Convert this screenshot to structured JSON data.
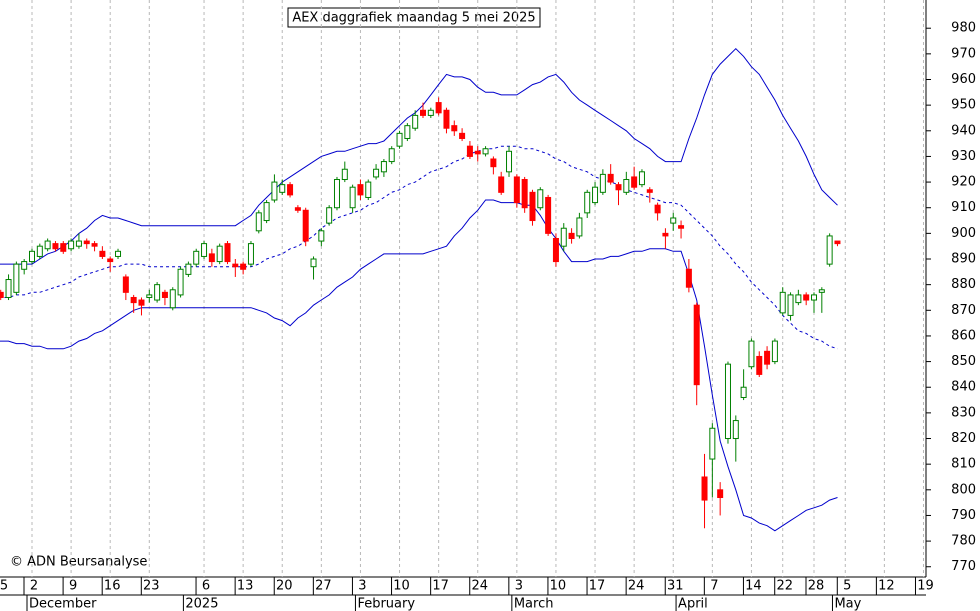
{
  "chart_data": {
    "type": "candlestick",
    "title": "AEX daggrafiek maandag 5 mei 2025",
    "footer": "© ADN Beursanalyse",
    "categories": [
      "5",
      null,
      null,
      null,
      null,
      "2",
      null,
      null,
      null,
      null,
      "9",
      null,
      null,
      null,
      null,
      "16",
      null,
      null,
      null,
      null,
      "23",
      null,
      null,
      null,
      null,
      null,
      null,
      "6",
      null,
      null,
      null,
      null,
      "13",
      null,
      null,
      null,
      null,
      "20",
      null,
      null,
      null,
      null,
      "27",
      null,
      null,
      null,
      null,
      "3",
      null,
      null,
      null,
      null,
      "10",
      null,
      null,
      null,
      null,
      "17",
      null,
      null,
      null,
      null,
      "24",
      null,
      null,
      null,
      null,
      "3",
      null,
      null,
      null,
      null,
      "10",
      null,
      null,
      null,
      null,
      "17",
      null,
      null,
      null,
      null,
      "24",
      null,
      null,
      null,
      null,
      "31",
      null,
      null,
      null,
      null,
      "7",
      null,
      null,
      null,
      null,
      "14",
      null,
      null,
      null,
      "22",
      null,
      null,
      null,
      "28",
      null,
      null,
      null,
      "5",
      null,
      null,
      null,
      null,
      "12",
      null,
      null,
      null,
      null,
      "19"
    ],
    "month_categories": [
      null,
      null,
      null,
      null,
      null,
      "December",
      null,
      null,
      null,
      null,
      null,
      null,
      null,
      null,
      null,
      null,
      null,
      null,
      null,
      null,
      null,
      null,
      null,
      null,
      null,
      "2025",
      null,
      null,
      null,
      null,
      null,
      null,
      null,
      null,
      null,
      null,
      null,
      null,
      null,
      null,
      null,
      null,
      null,
      null,
      null,
      null,
      null,
      "February",
      null,
      null,
      null,
      null,
      null,
      null,
      null,
      null,
      null,
      null,
      null,
      null,
      null,
      null,
      null,
      null,
      null,
      null,
      null,
      "March",
      null,
      null,
      null,
      null,
      null,
      null,
      null,
      null,
      null,
      null,
      null,
      null,
      null,
      null,
      null,
      null,
      null,
      null,
      null,
      null,
      "April",
      null,
      null,
      null,
      null,
      null,
      null,
      null,
      null,
      null,
      null,
      null,
      null,
      null,
      null,
      null,
      null,
      null,
      null,
      null,
      "May",
      null,
      null,
      null,
      null,
      null,
      null,
      null,
      null,
      null,
      null,
      null
    ],
    "open": [
      null,
      877,
      875,
      877,
      886,
      889,
      891,
      894,
      896,
      896,
      894,
      895,
      897,
      896,
      893,
      890,
      891,
      883,
      875,
      874,
      875,
      874,
      877,
      871,
      876,
      884,
      888,
      891,
      892,
      889,
      896,
      888,
      888,
      888,
      901,
      905,
      913,
      916,
      919,
      910,
      909,
      887,
      897,
      904,
      910,
      921,
      910,
      919,
      914,
      922,
      924,
      928,
      934,
      937,
      941,
      948,
      946,
      951,
      948,
      942,
      939,
      934,
      932,
      931,
      929,
      922,
      924,
      922,
      921,
      916,
      910,
      914,
      898,
      895,
      900,
      899,
      908,
      912,
      916,
      923,
      919,
      916,
      922,
      919,
      917,
      911,
      900,
      904,
      903,
      886,
      872,
      805,
      812,
      800,
      820,
      820,
      836,
      848,
      852,
      854,
      850,
      869,
      868,
      873,
      876,
      874,
      877,
      888,
      897,
      null,
      null,
      null,
      null,
      null,
      null,
      null,
      null,
      null,
      null,
      null
    ],
    "high": [
      null,
      878,
      884,
      889,
      890,
      894,
      896,
      898,
      897,
      897,
      898,
      900,
      898,
      897,
      895,
      891,
      894,
      884,
      876,
      875,
      878,
      881,
      878,
      879,
      887,
      889,
      894,
      897,
      894,
      896,
      897,
      890,
      889,
      897,
      909,
      913,
      923,
      921,
      920,
      911,
      910,
      891,
      902,
      911,
      922,
      928,
      919,
      921,
      921,
      927,
      929,
      934,
      940,
      943,
      948,
      951,
      949,
      953,
      949,
      944,
      941,
      936,
      934,
      934,
      930,
      924,
      934,
      923,
      922,
      917,
      918,
      915,
      900,
      904,
      902,
      908,
      917,
      920,
      925,
      927,
      920,
      924,
      926,
      925,
      918,
      912,
      902,
      908,
      905,
      890,
      873,
      814,
      826,
      803,
      850,
      829,
      847,
      859,
      854,
      856,
      859,
      879,
      877,
      878,
      877,
      877,
      879,
      900,
      897,
      null,
      null,
      null,
      null,
      null,
      null,
      null,
      null,
      null,
      null,
      null
    ],
    "low": [
      null,
      874,
      874,
      876,
      884,
      888,
      890,
      893,
      893,
      892,
      893,
      894,
      894,
      893,
      890,
      885,
      890,
      874,
      869,
      868,
      873,
      873,
      872,
      870,
      875,
      883,
      887,
      890,
      887,
      888,
      888,
      883,
      884,
      887,
      900,
      904,
      912,
      915,
      914,
      908,
      895,
      882,
      895,
      903,
      909,
      920,
      908,
      913,
      913,
      921,
      922,
      927,
      933,
      936,
      940,
      945,
      945,
      946,
      939,
      938,
      936,
      929,
      928,
      930,
      923,
      915,
      922,
      910,
      908,
      903,
      909,
      899,
      887,
      893,
      896,
      898,
      906,
      911,
      915,
      919,
      911,
      915,
      917,
      918,
      912,
      905,
      894,
      901,
      898,
      877,
      833,
      785,
      797,
      790,
      818,
      811,
      835,
      847,
      844,
      847,
      849,
      868,
      866,
      872,
      872,
      869,
      869,
      887,
      895,
      null,
      null,
      null,
      null,
      null,
      null,
      null,
      null,
      null,
      null,
      null
    ],
    "close": [
      null,
      875,
      882,
      888,
      889,
      893,
      895,
      897,
      894,
      893,
      897,
      897,
      896,
      895,
      891,
      889,
      893,
      877,
      873,
      872,
      876,
      880,
      875,
      878,
      886,
      888,
      893,
      896,
      889,
      895,
      889,
      887,
      886,
      896,
      908,
      912,
      920,
      919,
      915,
      909,
      897,
      890,
      901,
      910,
      921,
      925,
      918,
      915,
      920,
      925,
      928,
      933,
      939,
      942,
      946,
      946,
      948,
      947,
      941,
      940,
      937,
      930,
      931,
      933,
      926,
      916,
      932,
      912,
      910,
      905,
      917,
      900,
      889,
      902,
      898,
      906,
      916,
      918,
      923,
      920,
      917,
      921,
      918,
      924,
      916,
      908,
      899,
      906,
      902,
      879,
      841,
      796,
      824,
      797,
      849,
      827,
      840,
      858,
      845,
      849,
      858,
      877,
      876,
      876,
      874,
      876,
      878,
      899,
      896,
      null,
      null,
      null,
      null,
      null,
      null,
      null,
      null,
      null,
      null,
      null
    ],
    "bands": {
      "upper": [
        888,
        888,
        888,
        888,
        888,
        888,
        890,
        892,
        893,
        895,
        897,
        900,
        902,
        905,
        907,
        906,
        906,
        905,
        904,
        903,
        903,
        903,
        903,
        903,
        903,
        903,
        903,
        903,
        903,
        903,
        903,
        903,
        905,
        907,
        911,
        914,
        917,
        920,
        922,
        924,
        926,
        928,
        930,
        931,
        932,
        932,
        933,
        934,
        935,
        935,
        936,
        939,
        942,
        945,
        947,
        950,
        954,
        958,
        962,
        961,
        961,
        960,
        957,
        955,
        955,
        954,
        954,
        954,
        956,
        958,
        959,
        961,
        962,
        959,
        955,
        952,
        950,
        948,
        946,
        944,
        942,
        940,
        937,
        935,
        933,
        930,
        928,
        928,
        928,
        937,
        945,
        954,
        962,
        966,
        969,
        972,
        969,
        965,
        962,
        957,
        952,
        946,
        941,
        936,
        930,
        923,
        917,
        914,
        911,
        null,
        null,
        null,
        null,
        null,
        null,
        null,
        null,
        null,
        null,
        null
      ],
      "middle": [
        874,
        875,
        875,
        876,
        876,
        877,
        877,
        878,
        879,
        880,
        881,
        883,
        884,
        885,
        886,
        887,
        887,
        888,
        888,
        888,
        887,
        887,
        887,
        887,
        887,
        887,
        887,
        887,
        887,
        887,
        887,
        887,
        887,
        887,
        888,
        890,
        891,
        892,
        894,
        895,
        897,
        899,
        902,
        904,
        906,
        907,
        908,
        909,
        911,
        912,
        914,
        916,
        917,
        919,
        920,
        922,
        924,
        925,
        926,
        928,
        929,
        931,
        932,
        933,
        933,
        934,
        934,
        934,
        933,
        933,
        932,
        931,
        929,
        928,
        926,
        925,
        924,
        922,
        921,
        920,
        919,
        917,
        916,
        915,
        914,
        913,
        912,
        912,
        911,
        908,
        905,
        902,
        899,
        895,
        892,
        888,
        885,
        881,
        878,
        875,
        872,
        868,
        865,
        862,
        861,
        859,
        858,
        856,
        855,
        null,
        null,
        null,
        null,
        null,
        null,
        null,
        null,
        null,
        null,
        null
      ],
      "lower": [
        858,
        858,
        858,
        857,
        857,
        856,
        856,
        855,
        855,
        855,
        856,
        858,
        859,
        861,
        862,
        864,
        866,
        868,
        870,
        871,
        871,
        871,
        871,
        871,
        871,
        871,
        871,
        871,
        871,
        871,
        871,
        871,
        871,
        871,
        870,
        869,
        867,
        866,
        864,
        867,
        869,
        872,
        874,
        876,
        879,
        881,
        883,
        886,
        888,
        890,
        892,
        892,
        892,
        892,
        892,
        892,
        893,
        894,
        895,
        899,
        902,
        906,
        909,
        913,
        913,
        912,
        912,
        912,
        911,
        911,
        907,
        902,
        898,
        893,
        889,
        889,
        889,
        890,
        890,
        891,
        891,
        892,
        893,
        893,
        894,
        894,
        894,
        893,
        893,
        884,
        874,
        856,
        837,
        819,
        809,
        800,
        790,
        789,
        787,
        786,
        784,
        786,
        788,
        790,
        792,
        793,
        794,
        796,
        797,
        null,
        null,
        null,
        null,
        null,
        null,
        null,
        null,
        null,
        null,
        null
      ]
    },
    "up_color": "#008000",
    "down_color": "#ff0000",
    "band_color": "#0000cc",
    "grid": true,
    "ylim": [
      766,
      991
    ],
    "yticks": [
      770,
      780,
      790,
      800,
      810,
      820,
      830,
      840,
      850,
      860,
      870,
      880,
      890,
      900,
      910,
      920,
      930,
      940,
      950,
      960,
      970,
      980
    ]
  }
}
